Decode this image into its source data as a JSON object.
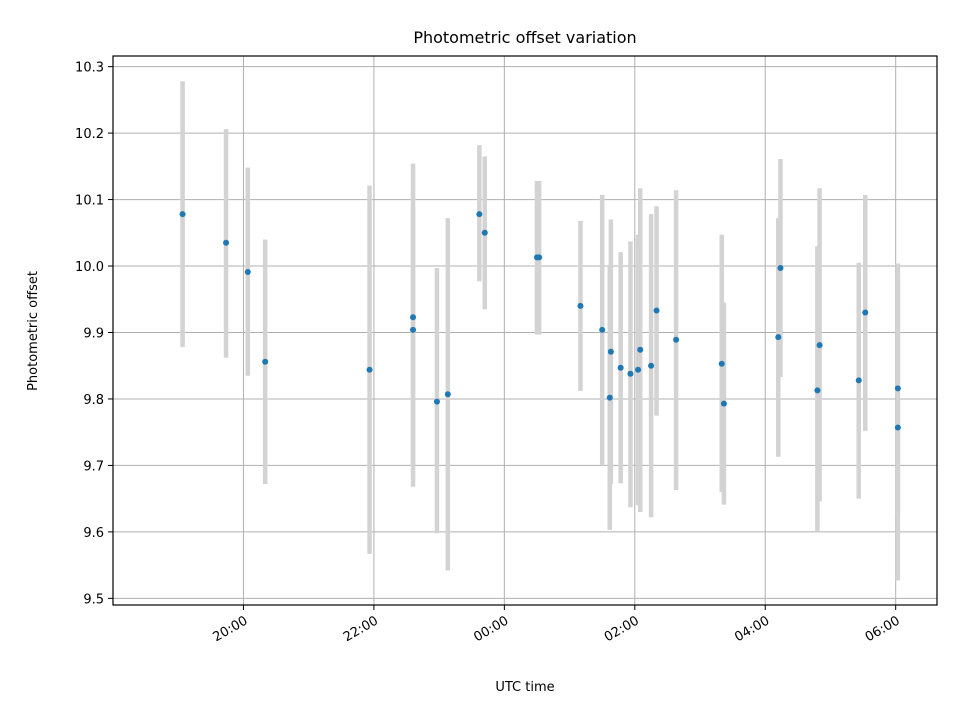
{
  "chart_data": {
    "type": "scatter",
    "title": "Photometric offset variation",
    "xlabel": "UTC time",
    "ylabel": "Photometric offset",
    "x_ticks": [
      "20:00",
      "22:00",
      "00:00",
      "02:00",
      "04:00",
      "06:00"
    ],
    "y_ticks": [
      "9.5",
      "9.6",
      "9.7",
      "9.8",
      "9.9",
      "10.0",
      "10.1",
      "10.2",
      "10.3"
    ],
    "xlim": [
      "18:00",
      "06:38"
    ],
    "ylim": [
      9.49,
      10.316
    ],
    "grid": true,
    "series": [
      {
        "points": [
          {
            "t": "19:04",
            "y": 10.078,
            "ylo": 9.878,
            "yhi": 10.278
          },
          {
            "t": "19:44",
            "y": 10.035,
            "ylo": 9.862,
            "yhi": 10.206
          },
          {
            "t": "20:04",
            "y": 9.991,
            "ylo": 9.835,
            "yhi": 10.148
          },
          {
            "t": "20:20",
            "y": 9.856,
            "ylo": 9.672,
            "yhi": 10.04
          },
          {
            "t": "21:56",
            "y": 9.844,
            "ylo": 9.567,
            "yhi": 10.121
          },
          {
            "t": "22:36",
            "y": 9.923,
            "ylo": 9.668,
            "yhi": 10.154
          },
          {
            "t": "22:36",
            "y": 9.904,
            "ylo": 9.7,
            "yhi": 10.09
          },
          {
            "t": "22:58",
            "y": 9.796,
            "ylo": 9.598,
            "yhi": 9.997
          },
          {
            "t": "23:08",
            "y": 9.807,
            "ylo": 9.542,
            "yhi": 10.072
          },
          {
            "t": "23:37",
            "y": 10.078,
            "ylo": 9.977,
            "yhi": 10.182
          },
          {
            "t": "23:42",
            "y": 10.05,
            "ylo": 9.935,
            "yhi": 10.165
          },
          {
            "t": "00:30",
            "y": 10.013,
            "ylo": 9.897,
            "yhi": 10.128
          },
          {
            "t": "00:32",
            "y": 10.013,
            "ylo": 9.897,
            "yhi": 10.128
          },
          {
            "t": "01:10",
            "y": 9.94,
            "ylo": 9.812,
            "yhi": 10.068
          },
          {
            "t": "01:30",
            "y": 9.904,
            "ylo": 9.7,
            "yhi": 10.107
          },
          {
            "t": "01:37",
            "y": 9.802,
            "ylo": 9.603,
            "yhi": 10.0
          },
          {
            "t": "01:38",
            "y": 9.871,
            "ylo": 9.672,
            "yhi": 10.07
          },
          {
            "t": "01:47",
            "y": 9.847,
            "ylo": 9.673,
            "yhi": 10.021
          },
          {
            "t": "01:56",
            "y": 9.838,
            "ylo": 9.637,
            "yhi": 10.037
          },
          {
            "t": "02:03",
            "y": 9.844,
            "ylo": 9.64,
            "yhi": 10.047
          },
          {
            "t": "02:05",
            "y": 9.874,
            "ylo": 9.63,
            "yhi": 10.117
          },
          {
            "t": "02:15",
            "y": 9.85,
            "ylo": 9.622,
            "yhi": 10.078
          },
          {
            "t": "02:20",
            "y": 9.933,
            "ylo": 9.775,
            "yhi": 10.09
          },
          {
            "t": "02:38",
            "y": 9.889,
            "ylo": 9.663,
            "yhi": 10.114
          },
          {
            "t": "03:20",
            "y": 9.853,
            "ylo": 9.66,
            "yhi": 10.047
          },
          {
            "t": "03:22",
            "y": 9.793,
            "ylo": 9.641,
            "yhi": 9.945
          },
          {
            "t": "04:12",
            "y": 9.893,
            "ylo": 9.713,
            "yhi": 10.072
          },
          {
            "t": "04:14",
            "y": 9.997,
            "ylo": 9.833,
            "yhi": 10.161
          },
          {
            "t": "04:48",
            "y": 9.813,
            "ylo": 9.6,
            "yhi": 10.03
          },
          {
            "t": "04:50",
            "y": 9.881,
            "ylo": 9.646,
            "yhi": 10.117
          },
          {
            "t": "05:26",
            "y": 9.828,
            "ylo": 9.65,
            "yhi": 10.005
          },
          {
            "t": "05:32",
            "y": 9.93,
            "ylo": 9.752,
            "yhi": 10.107
          },
          {
            "t": "06:02",
            "y": 9.816,
            "ylo": 9.625,
            "yhi": 10.004
          },
          {
            "t": "06:02",
            "y": 9.757,
            "ylo": 9.527,
            "yhi": 9.987
          }
        ]
      }
    ]
  }
}
